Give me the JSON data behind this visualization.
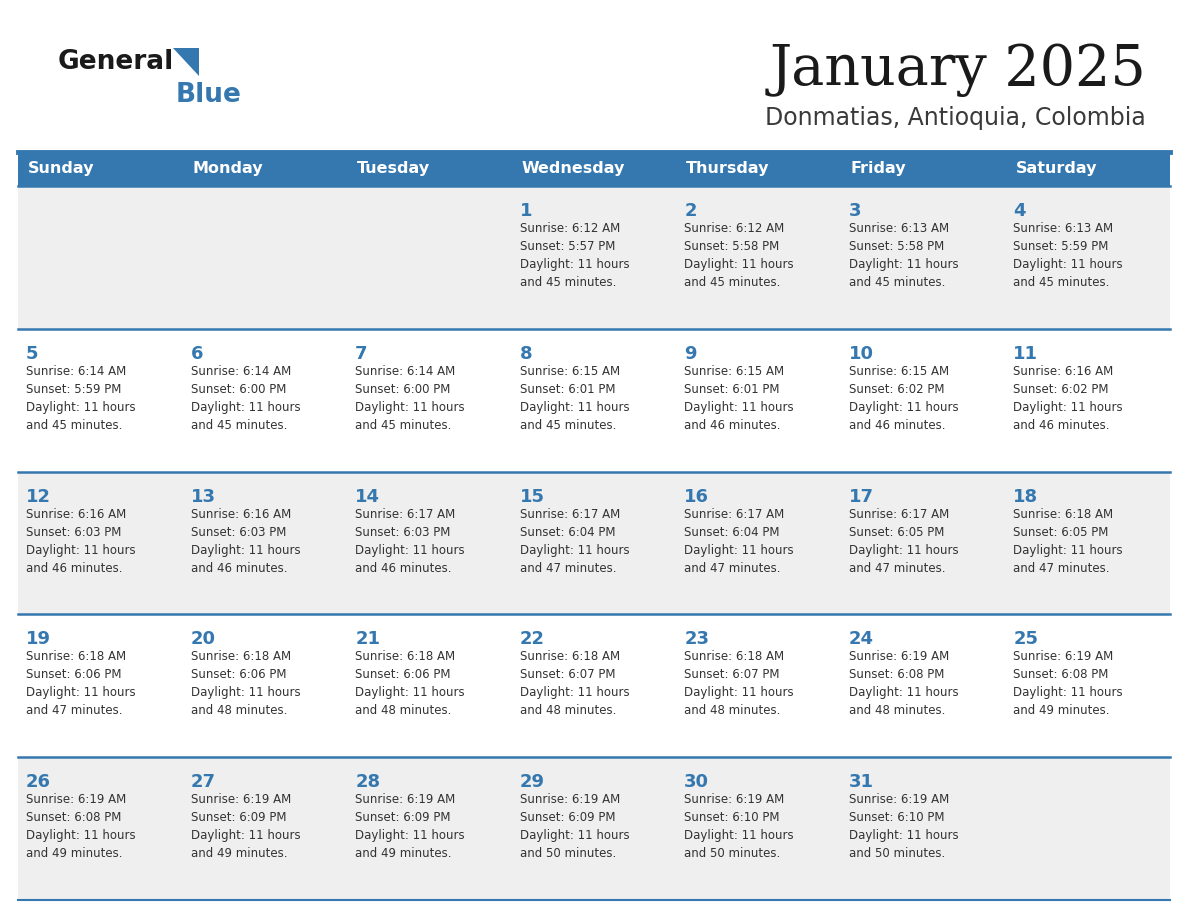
{
  "title": "January 2025",
  "subtitle": "Donmatias, Antioquia, Colombia",
  "header_bg_color": "#3578B0",
  "header_text_color": "#FFFFFF",
  "title_color": "#1A1A1A",
  "subtitle_color": "#3A3A3A",
  "day_number_color": "#3578B0",
  "cell_text_color": "#333333",
  "row_divider_color": "#3578B0",
  "row_bg_colors": [
    "#EFEFEF",
    "#FFFFFF",
    "#EFEFEF",
    "#FFFFFF",
    "#EFEFEF"
  ],
  "days_of_week": [
    "Sunday",
    "Monday",
    "Tuesday",
    "Wednesday",
    "Thursday",
    "Friday",
    "Saturday"
  ],
  "logo_text1": "General",
  "logo_text2": "Blue",
  "logo_color1": "#1A1A1A",
  "logo_color2": "#3578B0",
  "logo_triangle_color": "#3578B0",
  "weeks": [
    [
      {
        "day": null,
        "info": null
      },
      {
        "day": null,
        "info": null
      },
      {
        "day": null,
        "info": null
      },
      {
        "day": 1,
        "info": "Sunrise: 6:12 AM\nSunset: 5:57 PM\nDaylight: 11 hours\nand 45 minutes."
      },
      {
        "day": 2,
        "info": "Sunrise: 6:12 AM\nSunset: 5:58 PM\nDaylight: 11 hours\nand 45 minutes."
      },
      {
        "day": 3,
        "info": "Sunrise: 6:13 AM\nSunset: 5:58 PM\nDaylight: 11 hours\nand 45 minutes."
      },
      {
        "day": 4,
        "info": "Sunrise: 6:13 AM\nSunset: 5:59 PM\nDaylight: 11 hours\nand 45 minutes."
      }
    ],
    [
      {
        "day": 5,
        "info": "Sunrise: 6:14 AM\nSunset: 5:59 PM\nDaylight: 11 hours\nand 45 minutes."
      },
      {
        "day": 6,
        "info": "Sunrise: 6:14 AM\nSunset: 6:00 PM\nDaylight: 11 hours\nand 45 minutes."
      },
      {
        "day": 7,
        "info": "Sunrise: 6:14 AM\nSunset: 6:00 PM\nDaylight: 11 hours\nand 45 minutes."
      },
      {
        "day": 8,
        "info": "Sunrise: 6:15 AM\nSunset: 6:01 PM\nDaylight: 11 hours\nand 45 minutes."
      },
      {
        "day": 9,
        "info": "Sunrise: 6:15 AM\nSunset: 6:01 PM\nDaylight: 11 hours\nand 46 minutes."
      },
      {
        "day": 10,
        "info": "Sunrise: 6:15 AM\nSunset: 6:02 PM\nDaylight: 11 hours\nand 46 minutes."
      },
      {
        "day": 11,
        "info": "Sunrise: 6:16 AM\nSunset: 6:02 PM\nDaylight: 11 hours\nand 46 minutes."
      }
    ],
    [
      {
        "day": 12,
        "info": "Sunrise: 6:16 AM\nSunset: 6:03 PM\nDaylight: 11 hours\nand 46 minutes."
      },
      {
        "day": 13,
        "info": "Sunrise: 6:16 AM\nSunset: 6:03 PM\nDaylight: 11 hours\nand 46 minutes."
      },
      {
        "day": 14,
        "info": "Sunrise: 6:17 AM\nSunset: 6:03 PM\nDaylight: 11 hours\nand 46 minutes."
      },
      {
        "day": 15,
        "info": "Sunrise: 6:17 AM\nSunset: 6:04 PM\nDaylight: 11 hours\nand 47 minutes."
      },
      {
        "day": 16,
        "info": "Sunrise: 6:17 AM\nSunset: 6:04 PM\nDaylight: 11 hours\nand 47 minutes."
      },
      {
        "day": 17,
        "info": "Sunrise: 6:17 AM\nSunset: 6:05 PM\nDaylight: 11 hours\nand 47 minutes."
      },
      {
        "day": 18,
        "info": "Sunrise: 6:18 AM\nSunset: 6:05 PM\nDaylight: 11 hours\nand 47 minutes."
      }
    ],
    [
      {
        "day": 19,
        "info": "Sunrise: 6:18 AM\nSunset: 6:06 PM\nDaylight: 11 hours\nand 47 minutes."
      },
      {
        "day": 20,
        "info": "Sunrise: 6:18 AM\nSunset: 6:06 PM\nDaylight: 11 hours\nand 48 minutes."
      },
      {
        "day": 21,
        "info": "Sunrise: 6:18 AM\nSunset: 6:06 PM\nDaylight: 11 hours\nand 48 minutes."
      },
      {
        "day": 22,
        "info": "Sunrise: 6:18 AM\nSunset: 6:07 PM\nDaylight: 11 hours\nand 48 minutes."
      },
      {
        "day": 23,
        "info": "Sunrise: 6:18 AM\nSunset: 6:07 PM\nDaylight: 11 hours\nand 48 minutes."
      },
      {
        "day": 24,
        "info": "Sunrise: 6:19 AM\nSunset: 6:08 PM\nDaylight: 11 hours\nand 48 minutes."
      },
      {
        "day": 25,
        "info": "Sunrise: 6:19 AM\nSunset: 6:08 PM\nDaylight: 11 hours\nand 49 minutes."
      }
    ],
    [
      {
        "day": 26,
        "info": "Sunrise: 6:19 AM\nSunset: 6:08 PM\nDaylight: 11 hours\nand 49 minutes."
      },
      {
        "day": 27,
        "info": "Sunrise: 6:19 AM\nSunset: 6:09 PM\nDaylight: 11 hours\nand 49 minutes."
      },
      {
        "day": 28,
        "info": "Sunrise: 6:19 AM\nSunset: 6:09 PM\nDaylight: 11 hours\nand 49 minutes."
      },
      {
        "day": 29,
        "info": "Sunrise: 6:19 AM\nSunset: 6:09 PM\nDaylight: 11 hours\nand 50 minutes."
      },
      {
        "day": 30,
        "info": "Sunrise: 6:19 AM\nSunset: 6:10 PM\nDaylight: 11 hours\nand 50 minutes."
      },
      {
        "day": 31,
        "info": "Sunrise: 6:19 AM\nSunset: 6:10 PM\nDaylight: 11 hours\nand 50 minutes."
      },
      {
        "day": null,
        "info": null
      }
    ]
  ]
}
